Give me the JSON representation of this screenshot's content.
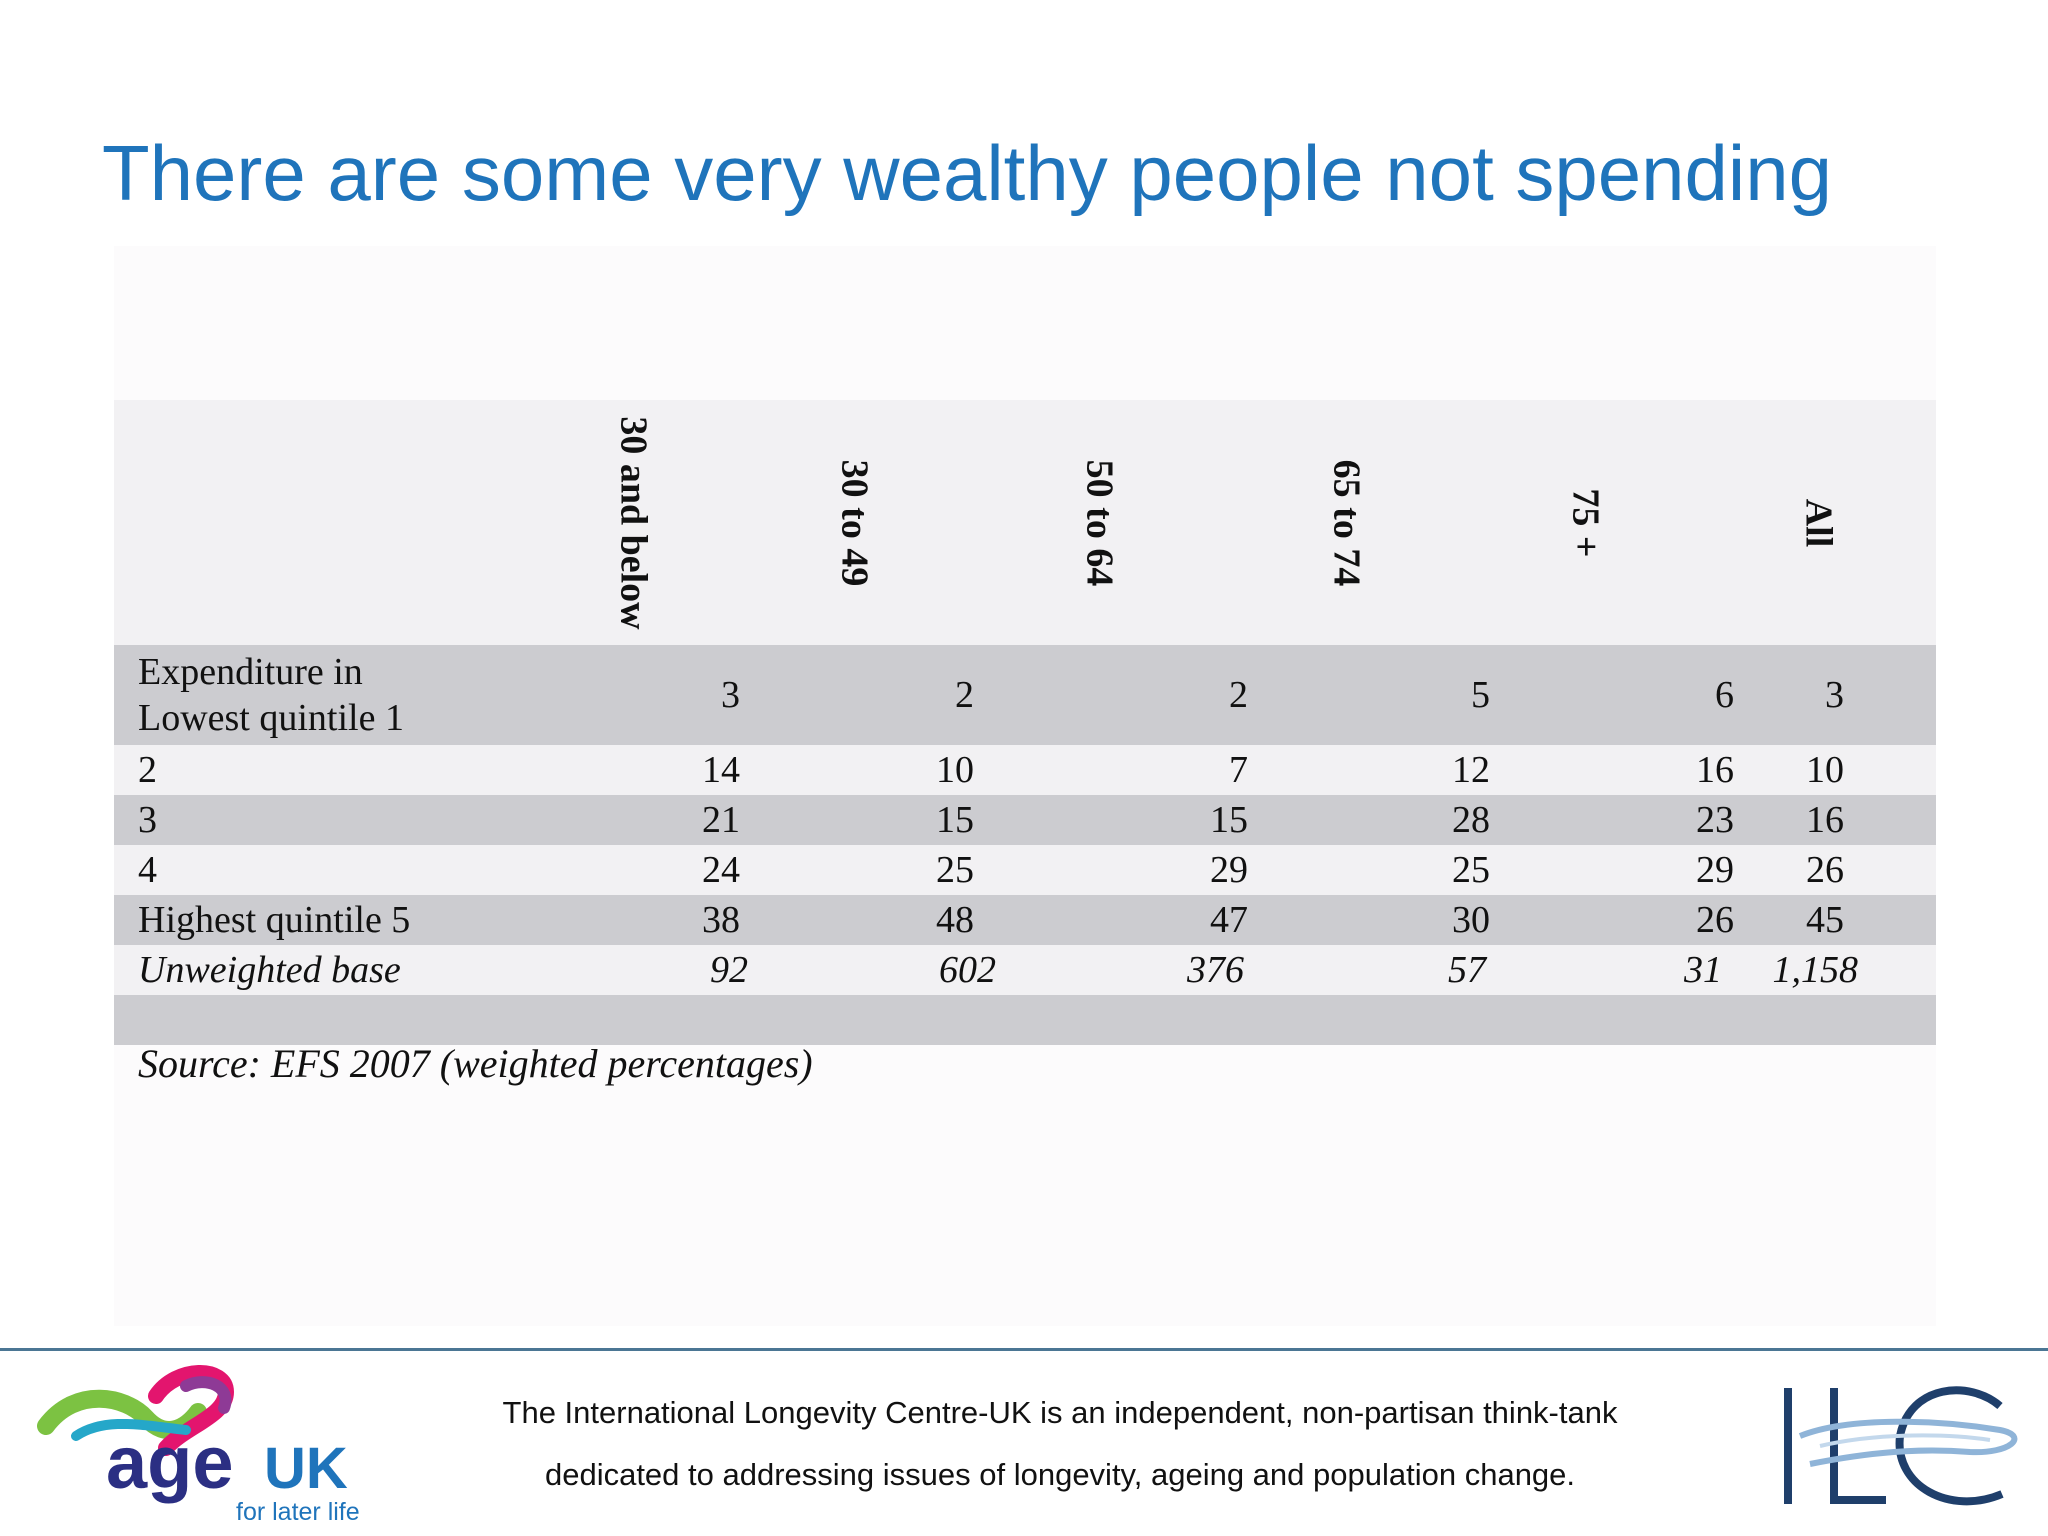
{
  "slide": {
    "title": "There are some very wealthy people not spending"
  },
  "table": {
    "columns": [
      "30 and below",
      "30 to 49",
      "50 to 64",
      "65 to 74",
      "75 +",
      "All"
    ],
    "rows": [
      {
        "label_lines": [
          "Expenditure in",
          "Lowest quintile 1"
        ],
        "values": [
          "3",
          "2",
          "2",
          "5",
          "6",
          "3"
        ]
      },
      {
        "label_lines": [
          "2"
        ],
        "values": [
          "14",
          "10",
          "7",
          "12",
          "16",
          "10"
        ]
      },
      {
        "label_lines": [
          "3"
        ],
        "values": [
          "21",
          "15",
          "15",
          "28",
          "23",
          "16"
        ]
      },
      {
        "label_lines": [
          "4"
        ],
        "values": [
          "24",
          "25",
          "29",
          "25",
          "29",
          "26"
        ]
      },
      {
        "label_lines": [
          "Highest quintile 5"
        ],
        "values": [
          "38",
          "48",
          "47",
          "30",
          "26",
          "45"
        ]
      },
      {
        "label_lines": [
          "Unweighted base"
        ],
        "values": [
          "92",
          "602",
          "376",
          "57",
          "31",
          "1,158"
        ],
        "italic": true
      }
    ],
    "source": "Source: EFS 2007 (weighted percentages)"
  },
  "footer": {
    "line1": "The International Longevity Centre-UK is an independent, non-partisan think-tank",
    "line2": "dedicated to addressing issues of longevity, ageing and population change.",
    "ageuk_logo": {
      "word_age": "age",
      "word_uk": "UK",
      "tagline": "for later life"
    },
    "ilc_logo": {
      "text": "ILC"
    }
  },
  "colors": {
    "title": "#1f74bb",
    "row_dark": "#ccccd0",
    "row_light": "#f2f1f3",
    "rule": "#4b7694",
    "ageuk_navy": "#2b2f83",
    "ilc_navy": "#1f3f6b"
  }
}
